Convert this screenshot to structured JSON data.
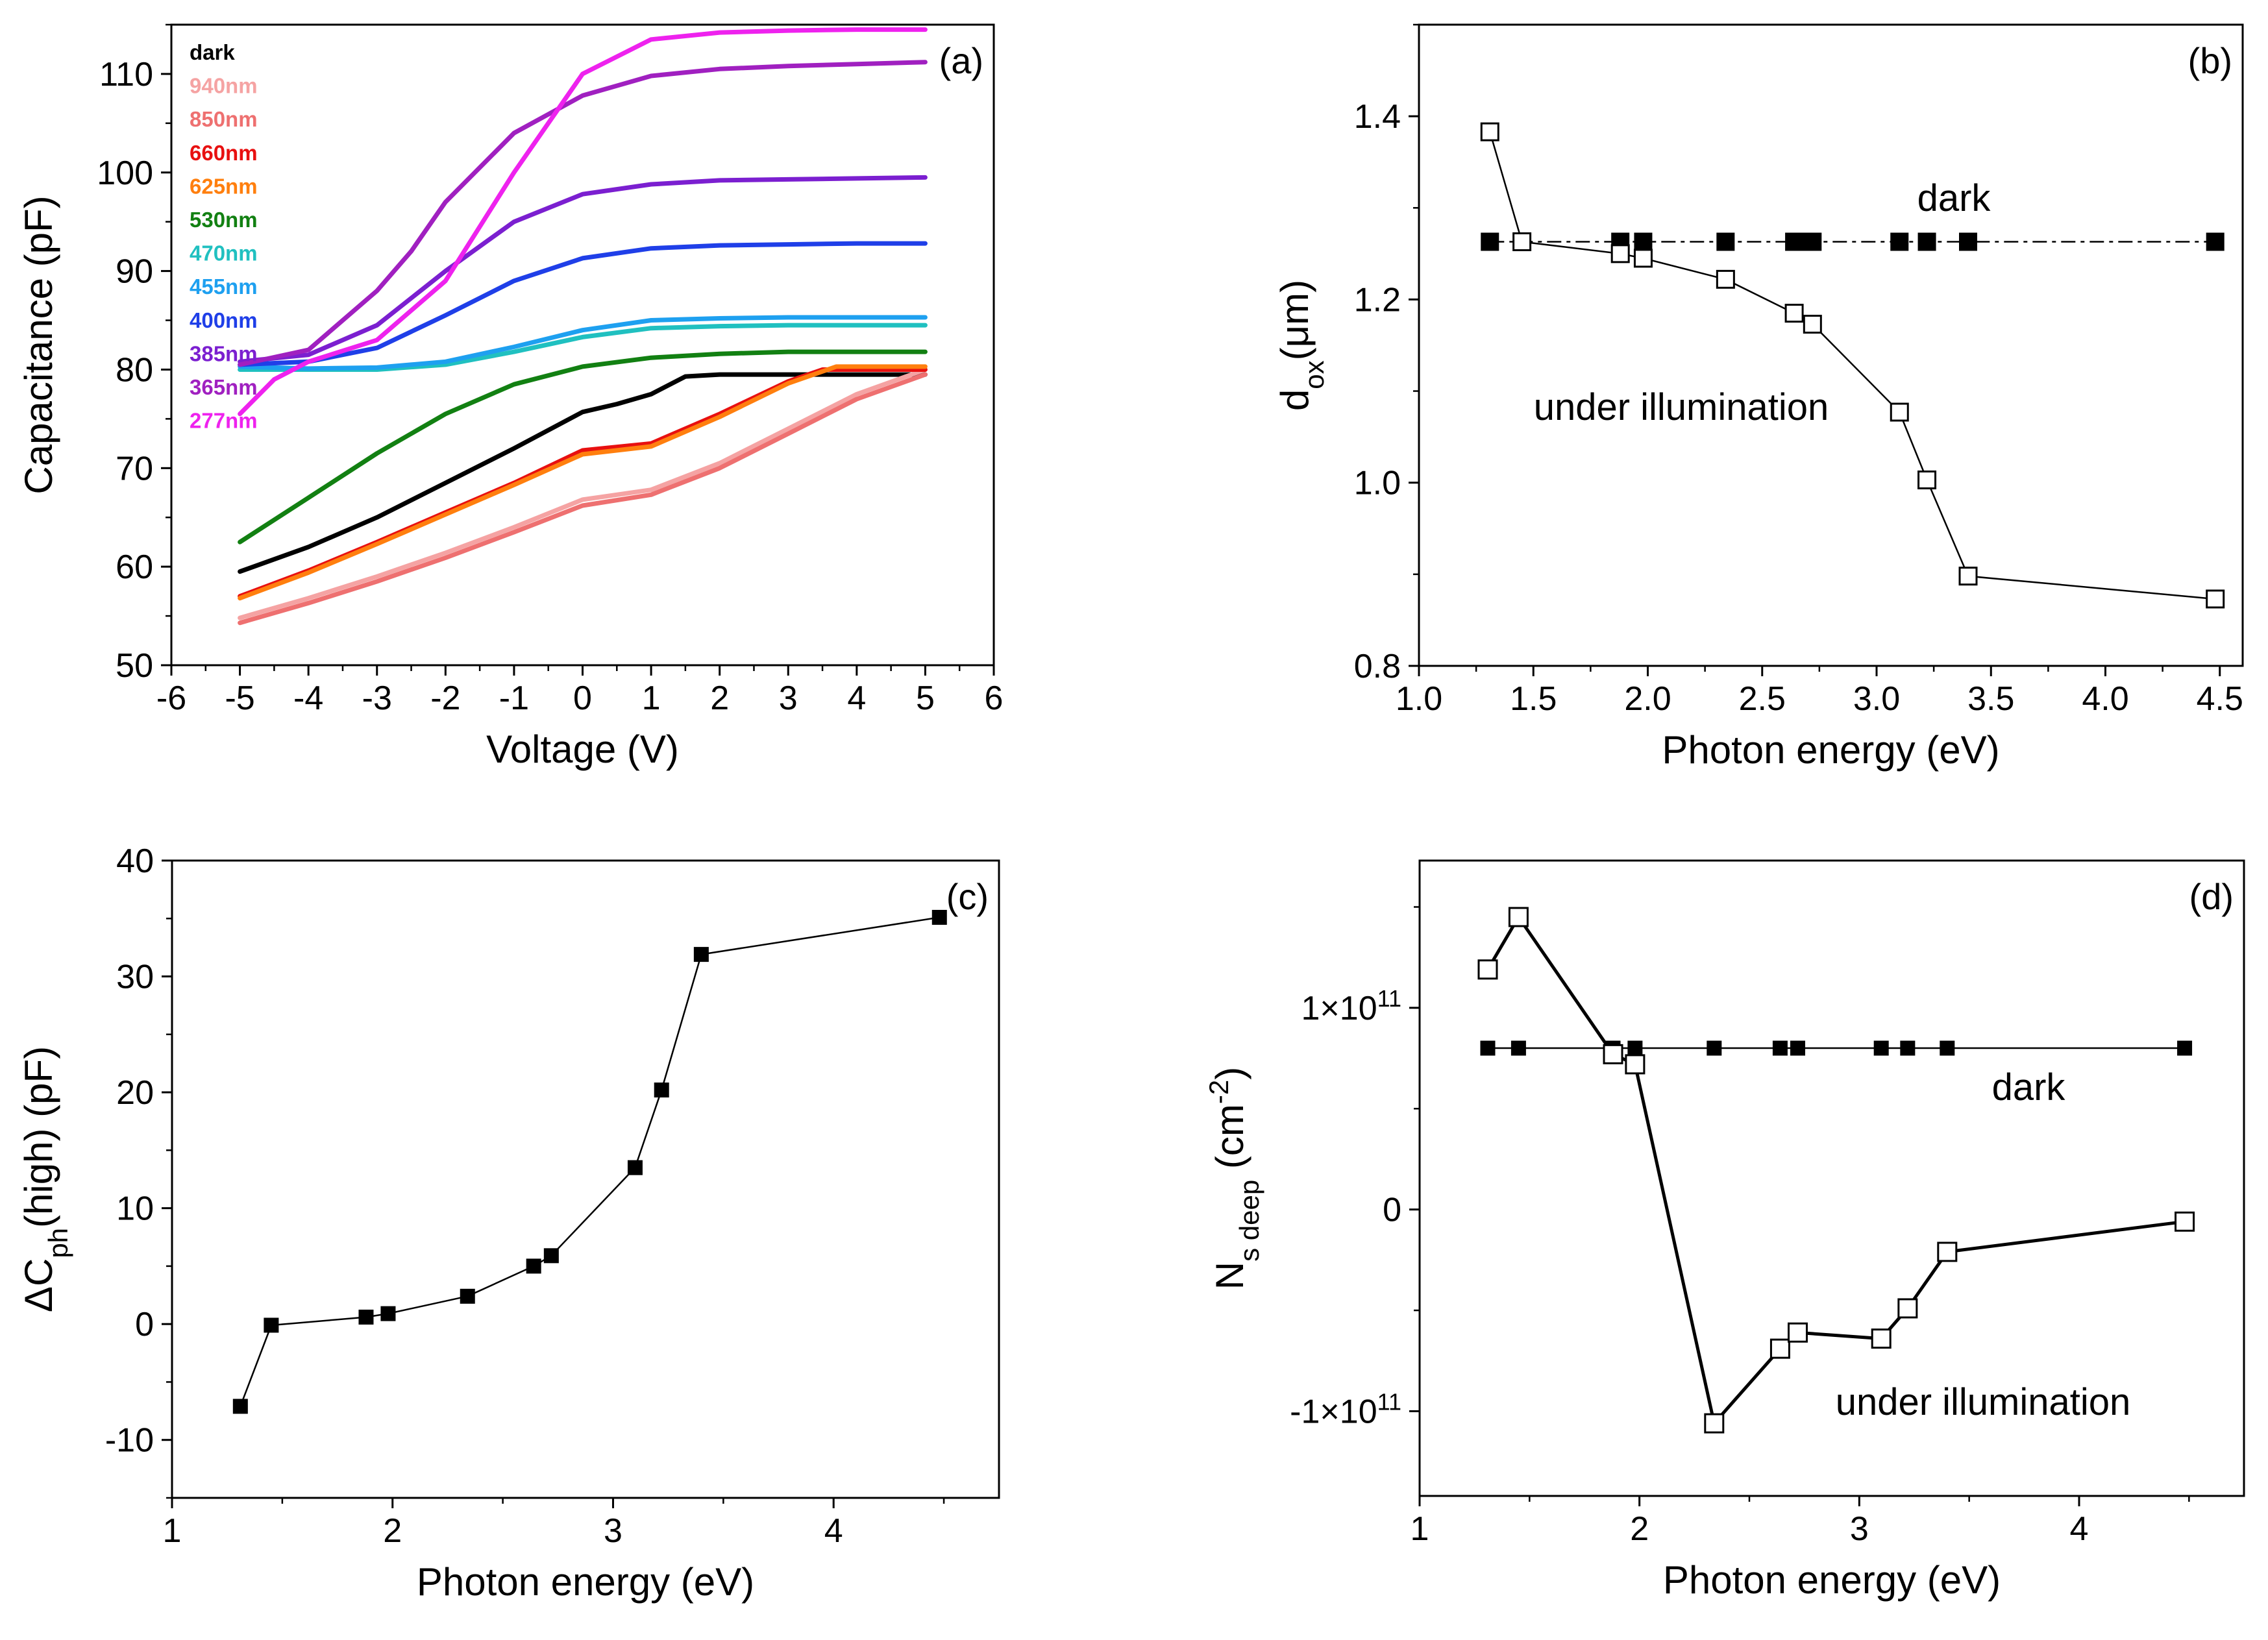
{
  "colors": {
    "dark": "#000000",
    "940nm": "#f5a3a3",
    "850nm": "#ee7070",
    "660nm": "#e81010",
    "625nm": "#ff7f0e",
    "530nm": "#128012",
    "470nm": "#20c0c0",
    "455nm": "#1ea0f0",
    "400nm": "#1f3fe8",
    "385nm": "#7b1fd0",
    "365nm": "#a020c0",
    "277nm": "#ee22ee"
  },
  "chart_data": [
    {
      "type": "line",
      "panel": "(a)",
      "xlabel": "Voltage (V)",
      "ylabel": "Capacitance (pF)",
      "xlim": [
        -6,
        6
      ],
      "ylim": [
        50,
        115
      ],
      "xticks": [
        "-6",
        "-5",
        "-4",
        "-3",
        "-2",
        "-1",
        "0",
        "1",
        "2",
        "3",
        "4",
        "5",
        "6"
      ],
      "yticks": [
        "50",
        "60",
        "70",
        "80",
        "90",
        "100",
        "110"
      ],
      "legend": [
        "dark",
        "940nm",
        "850nm",
        "660nm",
        "625nm",
        "530nm",
        "470nm",
        "455nm",
        "400nm",
        "385nm",
        "365nm",
        "277nm"
      ],
      "series": [
        {
          "name": "dark",
          "x": [
            -5,
            -4,
            -3,
            -2,
            -1,
            0,
            0.5,
            1,
            1.5,
            2,
            3,
            4,
            5
          ],
          "y": [
            59.5,
            62,
            65,
            68.5,
            72,
            75.7,
            76.5,
            77.5,
            79.3,
            79.5,
            79.5,
            79.5,
            79.5
          ]
        },
        {
          "name": "940nm",
          "x": [
            -5,
            -4,
            -3,
            -2,
            -1,
            0,
            1,
            2,
            3,
            4,
            5
          ],
          "y": [
            54.8,
            56.8,
            59,
            61.4,
            64,
            66.8,
            67.8,
            70.5,
            74,
            77.5,
            80
          ]
        },
        {
          "name": "850nm",
          "x": [
            -5,
            -4,
            -3,
            -2,
            -1,
            0,
            1,
            2,
            3,
            4,
            5
          ],
          "y": [
            54.3,
            56.3,
            58.5,
            60.9,
            63.5,
            66.2,
            67.3,
            70,
            73.5,
            77,
            79.5
          ]
        },
        {
          "name": "660nm",
          "x": [
            -5,
            -4,
            -3,
            -2,
            -1,
            0,
            1,
            2,
            3,
            3.5,
            4,
            5
          ],
          "y": [
            57,
            59.6,
            62.5,
            65.5,
            68.5,
            71.8,
            72.5,
            75.5,
            78.8,
            80,
            80,
            80
          ]
        },
        {
          "name": "625nm",
          "x": [
            -5,
            -4,
            -3,
            -2,
            -1,
            0,
            1,
            2,
            3,
            3.7,
            4,
            5
          ],
          "y": [
            56.8,
            59.4,
            62.3,
            65.3,
            68.3,
            71.4,
            72.2,
            75.2,
            78.6,
            80.3,
            80.3,
            80.3
          ]
        },
        {
          "name": "530nm",
          "x": [
            -5,
            -4,
            -3,
            -2,
            -1,
            0,
            1,
            2,
            3,
            4,
            5
          ],
          "y": [
            62.5,
            67,
            71.5,
            75.5,
            78.5,
            80.3,
            81.2,
            81.6,
            81.8,
            81.8,
            81.8
          ]
        },
        {
          "name": "470nm",
          "x": [
            -5,
            -4,
            -3,
            -2,
            -1,
            0,
            1,
            2,
            3,
            4,
            5
          ],
          "y": [
            80,
            80,
            80,
            80.5,
            81.8,
            83.3,
            84.2,
            84.4,
            84.5,
            84.5,
            84.5
          ]
        },
        {
          "name": "455nm",
          "x": [
            -5,
            -4,
            -3,
            -2,
            -1,
            0,
            1,
            2,
            3,
            4,
            5
          ],
          "y": [
            80.3,
            80.1,
            80.2,
            80.8,
            82.3,
            84,
            85,
            85.2,
            85.3,
            85.3,
            85.3
          ]
        },
        {
          "name": "400nm",
          "x": [
            -5,
            -4,
            -3,
            -2,
            -1,
            0,
            1,
            2,
            3,
            4,
            5
          ],
          "y": [
            80.5,
            80.8,
            82.2,
            85.5,
            89,
            91.3,
            92.3,
            92.6,
            92.7,
            92.8,
            92.8
          ]
        },
        {
          "name": "385nm",
          "x": [
            -5,
            -4,
            -3,
            -2,
            -1,
            0,
            1,
            2,
            3,
            4,
            5
          ],
          "y": [
            80.8,
            81.5,
            84.5,
            90,
            95,
            97.8,
            98.8,
            99.2,
            99.3,
            99.4,
            99.5
          ]
        },
        {
          "name": "365nm",
          "x": [
            -5,
            -4,
            -3,
            -2.5,
            -2,
            -1,
            0,
            1,
            2,
            3,
            4,
            5
          ],
          "y": [
            80.5,
            82,
            88,
            92,
            97,
            104,
            107.8,
            109.8,
            110.5,
            110.8,
            111,
            111.2
          ]
        },
        {
          "name": "277nm",
          "x": [
            -5,
            -4.5,
            -4,
            -3,
            -2,
            -1,
            0,
            1,
            2,
            3,
            4,
            5
          ],
          "y": [
            75.5,
            79,
            80.8,
            83,
            89,
            100,
            110,
            113.5,
            114.2,
            114.4,
            114.5,
            114.5
          ]
        }
      ]
    },
    {
      "type": "scatter",
      "panel": "(b)",
      "xlabel": "Photon energy (eV)",
      "ylabel_main": "d",
      "ylabel_sub": "ox",
      "ylabel_rest": "(μm)",
      "xlim": [
        1.0,
        4.6
      ],
      "ylim": [
        0.8,
        1.5
      ],
      "xticks": [
        "1.0",
        "1.5",
        "2.0",
        "2.5",
        "3.0",
        "3.5",
        "4.0",
        "4.5"
      ],
      "yticks": [
        "0.8",
        "1.0",
        "1.2",
        "1.4"
      ],
      "annotations": [
        "dark",
        "under illumination"
      ],
      "series": [
        {
          "name": "dark",
          "x": [
            1.31,
            1.45,
            1.88,
            1.98,
            2.34,
            2.64,
            2.68,
            2.72,
            3.1,
            3.22,
            3.4,
            4.48
          ],
          "y": [
            1.263,
            1.263,
            1.263,
            1.263,
            1.263,
            1.263,
            1.263,
            1.263,
            1.263,
            1.263,
            1.263,
            1.263
          ]
        },
        {
          "name": "under illumination",
          "x": [
            1.31,
            1.45,
            1.88,
            1.98,
            2.34,
            2.64,
            2.72,
            3.1,
            3.22,
            3.4,
            4.48
          ],
          "y": [
            1.383,
            1.263,
            1.25,
            1.245,
            1.222,
            1.185,
            1.173,
            1.077,
            1.003,
            0.898,
            0.873
          ]
        }
      ]
    },
    {
      "type": "scatter",
      "panel": "(c)",
      "xlabel": "Photon energy (eV)",
      "ylabel_main": "ΔC",
      "ylabel_sub": "ph",
      "ylabel_rest": "(high) (pF)",
      "xlim": [
        1.0,
        4.75
      ],
      "ylim": [
        -15,
        40
      ],
      "xticks": [
        "1",
        "2",
        "3",
        "4"
      ],
      "yticks": [
        "-10",
        "0",
        "10",
        "20",
        "30",
        "40"
      ],
      "series": [
        {
          "name": "ΔCph(high)",
          "x": [
            1.31,
            1.45,
            1.88,
            1.98,
            2.34,
            2.64,
            2.72,
            3.1,
            3.22,
            3.4,
            4.48
          ],
          "y": [
            -7.1,
            -0.1,
            0.6,
            0.9,
            2.4,
            5.0,
            5.9,
            13.5,
            20.2,
            31.9,
            35.1
          ]
        }
      ]
    },
    {
      "type": "scatter",
      "panel": "(d)",
      "xlabel": "Photon energy (eV)",
      "ylabel_main": "N",
      "ylabel_sub": "s deep",
      "ylabel_rest": " (cm",
      "ylabel_sup": "-2",
      "ylabel_end": ")",
      "xlim": [
        1.0,
        4.75
      ],
      "ylim": [
        -142000000000.0,
        173000000000.0
      ],
      "yticks_labels": [
        {
          "value": 100000000000.0,
          "base": "1×10",
          "exp": "11"
        },
        {
          "value": 0,
          "base": "0",
          "exp": ""
        },
        {
          "value": -100000000000.0,
          "base": "-1×10",
          "exp": "11"
        }
      ],
      "xticks": [
        "1",
        "2",
        "3",
        "4"
      ],
      "annotations": [
        "dark",
        "under illumination"
      ],
      "series": [
        {
          "name": "dark",
          "x": [
            1.31,
            1.45,
            1.88,
            1.98,
            2.34,
            2.64,
            2.72,
            3.1,
            3.22,
            3.4,
            4.48
          ],
          "y": [
            80000000000.0,
            80000000000.0,
            80000000000.0,
            80000000000.0,
            80000000000.0,
            80000000000.0,
            80000000000.0,
            80000000000.0,
            80000000000.0,
            80000000000.0,
            80000000000.0
          ]
        },
        {
          "name": "under illumination",
          "x": [
            1.31,
            1.45,
            1.88,
            1.98,
            2.34,
            2.64,
            2.72,
            3.1,
            3.22,
            3.4,
            4.48
          ],
          "y": [
            119000000000.0,
            145000000000.0,
            77000000000.0,
            72000000000.0,
            -106000000000.0,
            -69000000000.0,
            -61000000000.0,
            -64000000000.0,
            -49000000000.0,
            -21000000000.0,
            -6000000000.0
          ]
        }
      ]
    }
  ]
}
